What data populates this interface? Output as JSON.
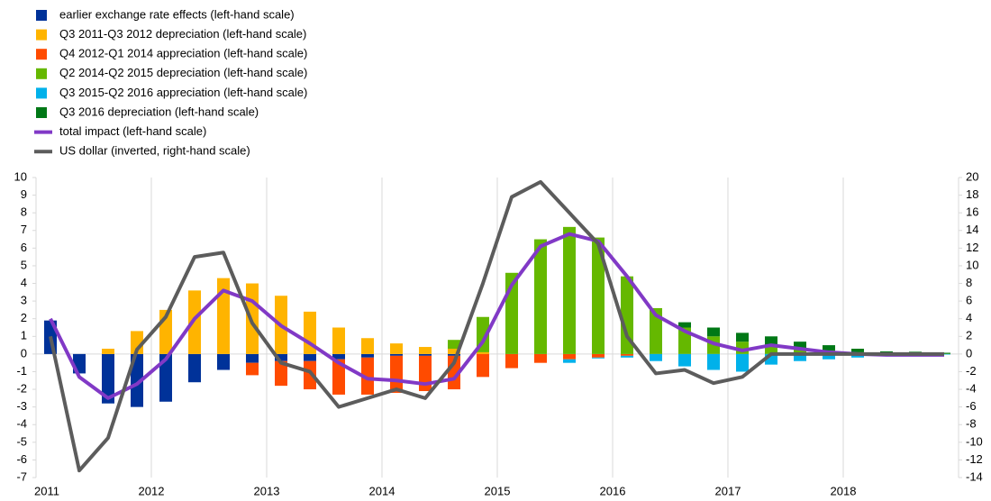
{
  "chart_data": {
    "type": "bar",
    "categories": [
      "2011",
      null,
      null,
      null,
      "2012",
      null,
      null,
      null,
      "2013",
      null,
      null,
      null,
      "2014",
      null,
      null,
      null,
      "2015",
      null,
      null,
      null,
      "2016",
      null,
      null,
      null,
      "2017",
      null,
      null,
      null,
      "2018",
      null,
      null,
      null
    ],
    "series": [
      {
        "name": "earlier exchange rate effects (left-hand scale)",
        "color": "#003299",
        "kind": "bar",
        "values": [
          1.9,
          -1.1,
          -2.8,
          -3.0,
          -2.7,
          -1.6,
          -0.9,
          -0.5,
          -0.4,
          -0.4,
          -0.3,
          -0.2,
          -0.1,
          -0.1,
          -0.1,
          0,
          0,
          0,
          0,
          0,
          0,
          0,
          0,
          0,
          0,
          0,
          0,
          0,
          0,
          0,
          0,
          0
        ]
      },
      {
        "name": "Q3 2011-Q3 2012 depreciation (left-hand scale)",
        "color": "#ffb400",
        "kind": "bar",
        "values": [
          0,
          0,
          0.3,
          1.3,
          2.5,
          3.6,
          4.3,
          4.0,
          3.3,
          2.4,
          1.5,
          0.9,
          0.6,
          0.4,
          0.3,
          0.1,
          0,
          0,
          0,
          0,
          0,
          0,
          0,
          0,
          0,
          0,
          0,
          0,
          0,
          0,
          0,
          0
        ]
      },
      {
        "name": "Q4 2012-Q1 2014 appreciation (left-hand scale)",
        "color": "#ff4b00",
        "kind": "bar",
        "values": [
          0,
          0,
          0,
          0,
          0,
          0,
          0,
          -0.7,
          -1.4,
          -1.6,
          -2.0,
          -2.1,
          -2.1,
          -2.0,
          -1.9,
          -1.3,
          -0.8,
          -0.5,
          -0.3,
          -0.2,
          -0.1,
          0,
          0,
          0,
          0,
          0,
          0,
          0,
          0,
          0,
          0,
          0
        ]
      },
      {
        "name": "Q2 2014-Q2 2015 depreciation (left-hand scale)",
        "color": "#65b800",
        "kind": "bar",
        "values": [
          0,
          0,
          0,
          0,
          0,
          0,
          0,
          0,
          0,
          0,
          0,
          0,
          0,
          0,
          0.5,
          2.0,
          4.6,
          6.5,
          7.2,
          6.6,
          4.4,
          2.6,
          1.5,
          1.0,
          0.7,
          0.5,
          0.3,
          0.2,
          0.1,
          0.05,
          0.03,
          0.02
        ]
      },
      {
        "name": "Q3 2015-Q2 2016 appreciation (left-hand scale)",
        "color": "#00b1ea",
        "kind": "bar",
        "values": [
          0,
          0,
          0,
          0,
          0,
          0,
          0,
          0,
          0,
          0,
          0,
          0,
          0,
          0,
          0,
          0,
          0,
          0,
          -0.2,
          -0.05,
          -0.1,
          -0.4,
          -0.7,
          -0.9,
          -1.0,
          -0.6,
          -0.4,
          -0.3,
          -0.2,
          -0.1,
          -0.05,
          -0.03
        ]
      },
      {
        "name": "Q3 2016 depreciation (left-hand scale)",
        "color": "#007816",
        "kind": "bar",
        "values": [
          0,
          0,
          0,
          0,
          0,
          0,
          0,
          0,
          0,
          0,
          0,
          0,
          0,
          0,
          0,
          0,
          0,
          0,
          0,
          0,
          0,
          0,
          0.3,
          0.5,
          0.5,
          0.5,
          0.4,
          0.3,
          0.2,
          0.1,
          0.1,
          0.05
        ]
      },
      {
        "name": "total impact (left-hand scale)",
        "color": "#8139c6",
        "kind": "line",
        "values": [
          2.0,
          -1.3,
          -2.5,
          -1.7,
          -0.3,
          2.0,
          3.6,
          3.0,
          1.6,
          0.6,
          -0.5,
          -1.4,
          -1.5,
          -1.7,
          -1.4,
          0.7,
          3.9,
          6.1,
          6.8,
          6.4,
          4.4,
          2.2,
          1.3,
          0.6,
          0.2,
          0.5,
          0.3,
          0.1,
          0,
          -0.05,
          -0.05,
          -0.05
        ]
      },
      {
        "name": "US dollar (inverted, right-hand scale)",
        "color": "#5c5c5c",
        "kind": "line",
        "axis": "y2",
        "values": [
          2.0,
          -13.2,
          -9.5,
          0.5,
          4.2,
          11.0,
          11.5,
          3.5,
          -1.0,
          -2.0,
          -6.0,
          -5.0,
          -4.0,
          -5.0,
          -1.0,
          8.0,
          17.8,
          19.5,
          16.0,
          12.5,
          2.0,
          -2.2,
          -1.8,
          -3.3,
          -2.6,
          0,
          0,
          0,
          0,
          0,
          0,
          0
        ]
      }
    ],
    "ylim": [
      -7,
      10
    ],
    "yticks": [
      -7,
      -6,
      -5,
      -4,
      -3,
      -2,
      -1,
      0,
      1,
      2,
      3,
      4,
      5,
      6,
      7,
      8,
      9,
      10
    ],
    "y2lim": [
      -14,
      20
    ],
    "y2ticks": [
      -14,
      -12,
      -10,
      -8,
      -6,
      -4,
      -2,
      0,
      2,
      4,
      6,
      8,
      10,
      12,
      14,
      16,
      18,
      20
    ]
  }
}
